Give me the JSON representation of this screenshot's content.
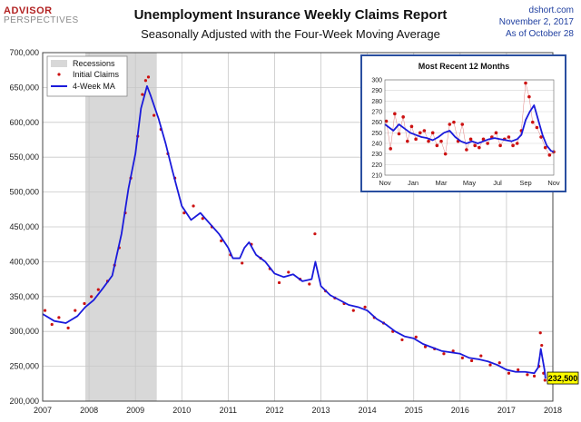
{
  "header": {
    "logo_line1": "ADVISOR",
    "logo_line2": "PERSPECTIVES",
    "title": "Unemployment Insurance Weekly Claims Report",
    "subtitle": "Seasonally Adjusted with the Four-Week Moving Average",
    "source": "dshort.com",
    "date": "November 2, 2017",
    "as_of": "As of October 28"
  },
  "colors": {
    "ma_line": "#1a1adb",
    "claims_dots": "#cc1111",
    "recession": "#d8d8d8",
    "inset_border": "#2a4fa0",
    "callout_fill": "#ffff00"
  },
  "chart_data": [
    {
      "type": "line",
      "ylim": [
        200000,
        700000
      ],
      "xlim": [
        2007,
        2018
      ],
      "grid": true,
      "legend_position": "top-left",
      "y_ticks": [
        "200,000",
        "250,000",
        "300,000",
        "350,000",
        "400,000",
        "450,000",
        "500,000",
        "550,000",
        "600,000",
        "650,000",
        "700,000"
      ],
      "x_ticks": [
        "2007",
        "2008",
        "2009",
        "2010",
        "2011",
        "2012",
        "2013",
        "2014",
        "2015",
        "2016",
        "2017",
        "2018"
      ],
      "recessions": [
        {
          "start": 2007.92,
          "end": 2009.46,
          "label": "Recessions"
        }
      ],
      "last_value_label": "232,500",
      "last_value": 232500,
      "series": [
        {
          "name": "4-Week MA",
          "style": "line",
          "points": [
            [
              2007.0,
              325000
            ],
            [
              2007.25,
              315000
            ],
            [
              2007.5,
              312000
            ],
            [
              2007.75,
              322000
            ],
            [
              2007.92,
              335000
            ],
            [
              2008.1,
              345000
            ],
            [
              2008.3,
              362000
            ],
            [
              2008.5,
              380000
            ],
            [
              2008.7,
              440000
            ],
            [
              2008.85,
              505000
            ],
            [
              2009.0,
              555000
            ],
            [
              2009.12,
              620000
            ],
            [
              2009.25,
              652000
            ],
            [
              2009.33,
              638000
            ],
            [
              2009.5,
              605000
            ],
            [
              2009.65,
              570000
            ],
            [
              2009.8,
              530000
            ],
            [
              2010.0,
              480000
            ],
            [
              2010.2,
              460000
            ],
            [
              2010.4,
              470000
            ],
            [
              2010.6,
              455000
            ],
            [
              2010.8,
              440000
            ],
            [
              2011.0,
              420000
            ],
            [
              2011.1,
              405000
            ],
            [
              2011.25,
              405000
            ],
            [
              2011.35,
              420000
            ],
            [
              2011.45,
              428000
            ],
            [
              2011.6,
              410000
            ],
            [
              2011.8,
              400000
            ],
            [
              2012.0,
              383000
            ],
            [
              2012.2,
              378000
            ],
            [
              2012.4,
              382000
            ],
            [
              2012.6,
              372000
            ],
            [
              2012.8,
              375000
            ],
            [
              2012.88,
              400000
            ],
            [
              2013.0,
              365000
            ],
            [
              2013.2,
              352000
            ],
            [
              2013.4,
              345000
            ],
            [
              2013.6,
              338000
            ],
            [
              2013.8,
              335000
            ],
            [
              2014.0,
              330000
            ],
            [
              2014.2,
              318000
            ],
            [
              2014.4,
              310000
            ],
            [
              2014.6,
              300000
            ],
            [
              2014.8,
              293000
            ],
            [
              2015.0,
              290000
            ],
            [
              2015.2,
              282000
            ],
            [
              2015.4,
              277000
            ],
            [
              2015.6,
              272000
            ],
            [
              2015.8,
              270000
            ],
            [
              2016.0,
              268000
            ],
            [
              2016.2,
              262000
            ],
            [
              2016.4,
              260000
            ],
            [
              2016.6,
              257000
            ],
            [
              2016.8,
              252000
            ],
            [
              2017.0,
              245000
            ],
            [
              2017.2,
              242000
            ],
            [
              2017.4,
              242000
            ],
            [
              2017.6,
              240000
            ],
            [
              2017.68,
              248000
            ],
            [
              2017.72,
              265000
            ],
            [
              2017.74,
              275000
            ],
            [
              2017.78,
              260000
            ],
            [
              2017.82,
              245000
            ],
            [
              2017.84,
              232500
            ]
          ]
        },
        {
          "name": "Initial Claims",
          "style": "dots",
          "points": [
            [
              2007.05,
              330000
            ],
            [
              2007.2,
              310000
            ],
            [
              2007.35,
              320000
            ],
            [
              2007.55,
              305000
            ],
            [
              2007.7,
              330000
            ],
            [
              2007.9,
              340000
            ],
            [
              2008.05,
              350000
            ],
            [
              2008.2,
              360000
            ],
            [
              2008.4,
              372000
            ],
            [
              2008.55,
              395000
            ],
            [
              2008.65,
              420000
            ],
            [
              2008.78,
              470000
            ],
            [
              2008.9,
              520000
            ],
            [
              2009.05,
              580000
            ],
            [
              2009.15,
              640000
            ],
            [
              2009.22,
              660000
            ],
            [
              2009.28,
              665000
            ],
            [
              2009.4,
              610000
            ],
            [
              2009.55,
              590000
            ],
            [
              2009.7,
              555000
            ],
            [
              2009.85,
              520000
            ],
            [
              2010.05,
              470000
            ],
            [
              2010.25,
              480000
            ],
            [
              2010.45,
              462000
            ],
            [
              2010.65,
              450000
            ],
            [
              2010.85,
              430000
            ],
            [
              2011.05,
              410000
            ],
            [
              2011.3,
              398000
            ],
            [
              2011.5,
              425000
            ],
            [
              2011.7,
              405000
            ],
            [
              2011.9,
              390000
            ],
            [
              2012.1,
              370000
            ],
            [
              2012.3,
              385000
            ],
            [
              2012.55,
              375000
            ],
            [
              2012.75,
              368000
            ],
            [
              2012.87,
              440000
            ],
            [
              2013.1,
              358000
            ],
            [
              2013.3,
              348000
            ],
            [
              2013.5,
              340000
            ],
            [
              2013.7,
              330000
            ],
            [
              2013.95,
              335000
            ],
            [
              2014.15,
              320000
            ],
            [
              2014.35,
              312000
            ],
            [
              2014.55,
              300000
            ],
            [
              2014.75,
              288000
            ],
            [
              2015.05,
              292000
            ],
            [
              2015.25,
              278000
            ],
            [
              2015.45,
              275000
            ],
            [
              2015.65,
              268000
            ],
            [
              2015.85,
              272000
            ],
            [
              2016.05,
              262000
            ],
            [
              2016.25,
              258000
            ],
            [
              2016.45,
              265000
            ],
            [
              2016.65,
              252000
            ],
            [
              2016.85,
              255000
            ],
            [
              2017.05,
              240000
            ],
            [
              2017.25,
              245000
            ],
            [
              2017.45,
              238000
            ],
            [
              2017.6,
              236000
            ],
            [
              2017.7,
              250000
            ],
            [
              2017.73,
              298000
            ],
            [
              2017.76,
              280000
            ],
            [
              2017.8,
              240000
            ],
            [
              2017.83,
              230000
            ]
          ]
        }
      ]
    },
    {
      "type": "line",
      "title": "Most Recent 12 Months",
      "ylim": [
        210,
        300
      ],
      "y_ticks": [
        "210",
        "220",
        "230",
        "240",
        "250",
        "260",
        "270",
        "280",
        "290",
        "300"
      ],
      "x_ticks": [
        "Nov",
        "Jan",
        "Mar",
        "May",
        "Jul",
        "Sep",
        "Nov"
      ],
      "x_tick_positions": [
        0,
        2,
        4,
        6,
        8,
        10,
        12
      ],
      "series": [
        {
          "name": "4-Week MA",
          "style": "line",
          "points": [
            [
              0.0,
              258
            ],
            [
              0.3,
              255
            ],
            [
              0.6,
              252
            ],
            [
              1.0,
              258
            ],
            [
              1.4,
              254
            ],
            [
              1.8,
              250
            ],
            [
              2.2,
              248
            ],
            [
              2.6,
              246
            ],
            [
              3.0,
              245
            ],
            [
              3.4,
              243
            ],
            [
              3.8,
              246
            ],
            [
              4.2,
              250
            ],
            [
              4.6,
              252
            ],
            [
              5.0,
              246
            ],
            [
              5.4,
              242
            ],
            [
              5.8,
              240
            ],
            [
              6.2,
              242
            ],
            [
              6.6,
              240
            ],
            [
              7.0,
              242
            ],
            [
              7.4,
              244
            ],
            [
              7.8,
              245
            ],
            [
              8.2,
              244
            ],
            [
              8.6,
              243
            ],
            [
              9.0,
              242
            ],
            [
              9.4,
              244
            ],
            [
              9.7,
              248
            ],
            [
              10.0,
              262
            ],
            [
              10.3,
              270
            ],
            [
              10.6,
              276
            ],
            [
              10.9,
              262
            ],
            [
              11.2,
              248
            ],
            [
              11.5,
              238
            ],
            [
              11.8,
              233
            ],
            [
              12.0,
              232
            ]
          ]
        },
        {
          "name": "Initial Claims",
          "style": "dots",
          "points": [
            [
              0.1,
              261
            ],
            [
              0.4,
              235
            ],
            [
              0.7,
              268
            ],
            [
              1.0,
              249
            ],
            [
              1.3,
              265
            ],
            [
              1.6,
              242
            ],
            [
              1.9,
              256
            ],
            [
              2.2,
              244
            ],
            [
              2.5,
              250
            ],
            [
              2.8,
              252
            ],
            [
              3.1,
              242
            ],
            [
              3.4,
              250
            ],
            [
              3.7,
              238
            ],
            [
              4.0,
              242
            ],
            [
              4.3,
              230
            ],
            [
              4.6,
              258
            ],
            [
              4.9,
              260
            ],
            [
              5.2,
              242
            ],
            [
              5.5,
              258
            ],
            [
              5.8,
              234
            ],
            [
              6.1,
              244
            ],
            [
              6.4,
              238
            ],
            [
              6.7,
              236
            ],
            [
              7.0,
              244
            ],
            [
              7.3,
              240
            ],
            [
              7.6,
              246
            ],
            [
              7.9,
              250
            ],
            [
              8.2,
              238
            ],
            [
              8.5,
              244
            ],
            [
              8.8,
              246
            ],
            [
              9.1,
              238
            ],
            [
              9.4,
              240
            ],
            [
              9.7,
              252
            ],
            [
              10.0,
              297
            ],
            [
              10.25,
              284
            ],
            [
              10.5,
              260
            ],
            [
              10.8,
              255
            ],
            [
              11.1,
              246
            ],
            [
              11.4,
              236
            ],
            [
              11.7,
              229
            ],
            [
              12.0,
              232
            ]
          ]
        }
      ]
    }
  ]
}
